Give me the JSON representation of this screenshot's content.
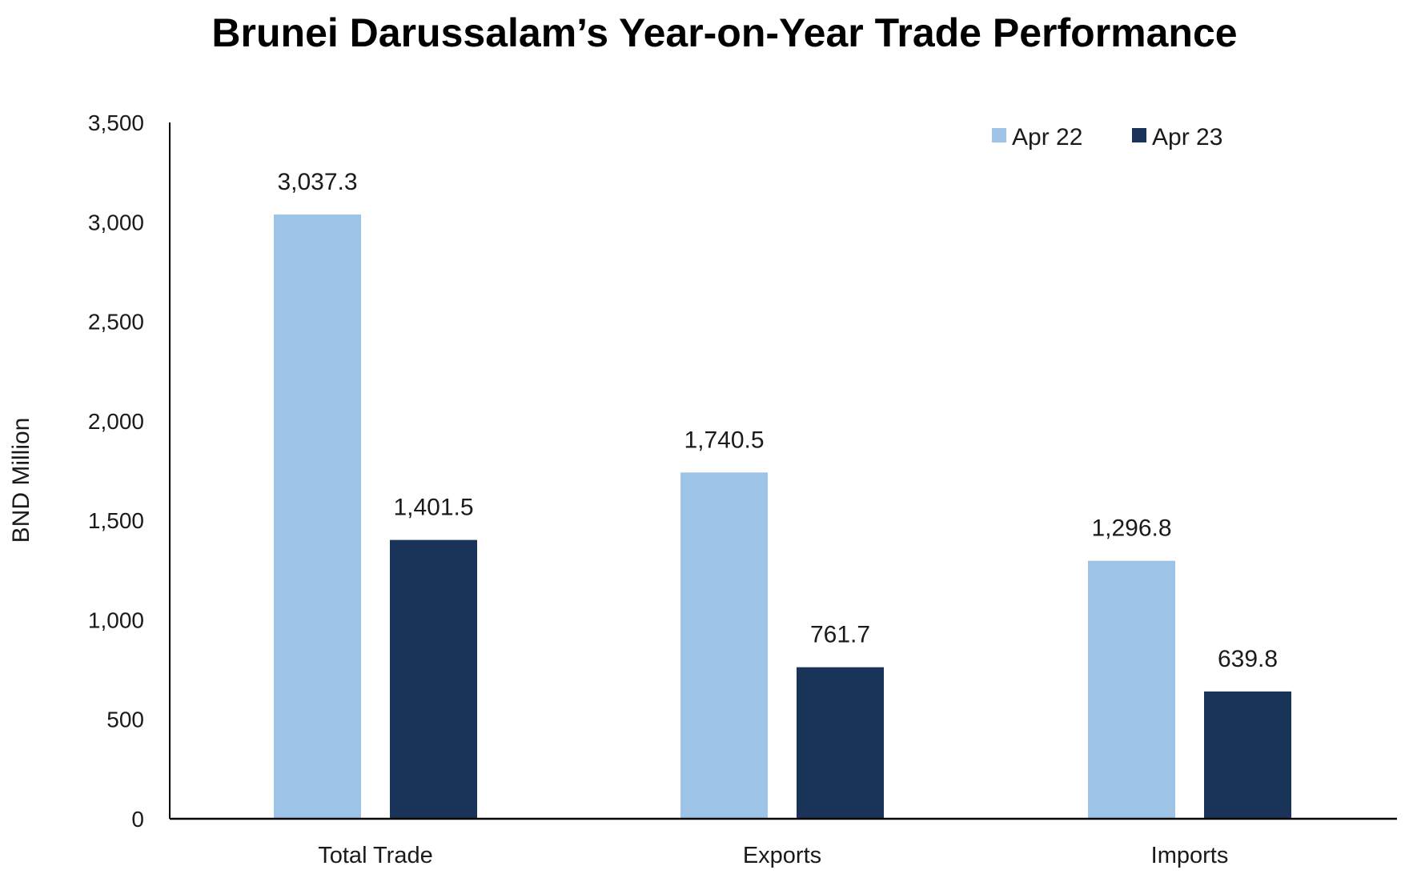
{
  "chart_data": {
    "type": "bar",
    "title": "Brunei Darussalam’s Year-on-Year Trade Performance",
    "ylabel": "BND Million",
    "xlabel": "",
    "categories": [
      "Total Trade",
      "Exports",
      "Imports"
    ],
    "ylim": [
      0,
      3500
    ],
    "yticks": [
      0,
      500,
      1000,
      1500,
      2000,
      2500,
      3000,
      3500
    ],
    "ytick_labels": [
      "0",
      "500",
      "1,000",
      "1,500",
      "2,000",
      "2,500",
      "3,000",
      "3,500"
    ],
    "grid": false,
    "legend_position": "top-right",
    "series": [
      {
        "name": "Apr 22",
        "color": "#9dc3e6",
        "values": [
          3037.3,
          1740.5,
          1296.8
        ],
        "value_labels": [
          "3,037.3",
          "1,740.5",
          "1,296.8"
        ]
      },
      {
        "name": "Apr 23",
        "color": "#1a3459",
        "values": [
          1401.5,
          761.7,
          639.8
        ],
        "value_labels": [
          "1,401.5",
          "761.7",
          "639.8"
        ]
      }
    ]
  }
}
